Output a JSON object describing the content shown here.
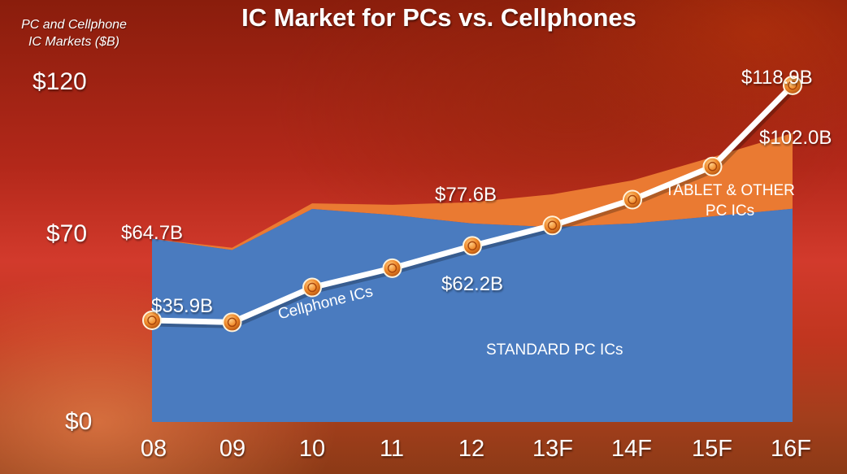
{
  "chart_data": {
    "type": "area",
    "title": "IC Market for PCs vs. Cellphones",
    "ylabel_lines": [
      "PC and Cellphone",
      "IC Markets ($B)"
    ],
    "ylim": [
      0,
      120
    ],
    "y_ticks": [
      "$0",
      "$70",
      "$120"
    ],
    "y_tick_values": [
      0,
      70,
      120
    ],
    "categories": [
      "08",
      "09",
      "10",
      "11",
      "12",
      "13F",
      "14F",
      "15F",
      "16F"
    ],
    "series": [
      {
        "name": "STANDARD PC ICs",
        "kind": "area",
        "color": "#4a7bbf",
        "values": [
          64.7,
          60.7,
          75.2,
          73.1,
          70.1,
          68.8,
          70.1,
          72.6,
          75.3
        ]
      },
      {
        "name": "TABLET & OTHER PC ICs",
        "kind": "area-stacked",
        "color": "#ea7a32",
        "values": [
          0,
          0.8,
          2.0,
          3.6,
          7.5,
          11.6,
          15.2,
          20.9,
          26.7
        ]
      },
      {
        "name": "Cellphone ICs",
        "kind": "line",
        "color": "#ffffff",
        "values": [
          35.9,
          35.2,
          47.5,
          54.3,
          62.2,
          69.4,
          78.5,
          90.2,
          118.9
        ]
      }
    ],
    "data_labels": {
      "pc_total_08": "$64.7B",
      "pc_total_12": "$77.6B",
      "pc_total_16": "$102.0B",
      "cell_08": "$35.9B",
      "cell_12": "$62.2B",
      "cell_16": "$118.9B"
    }
  }
}
